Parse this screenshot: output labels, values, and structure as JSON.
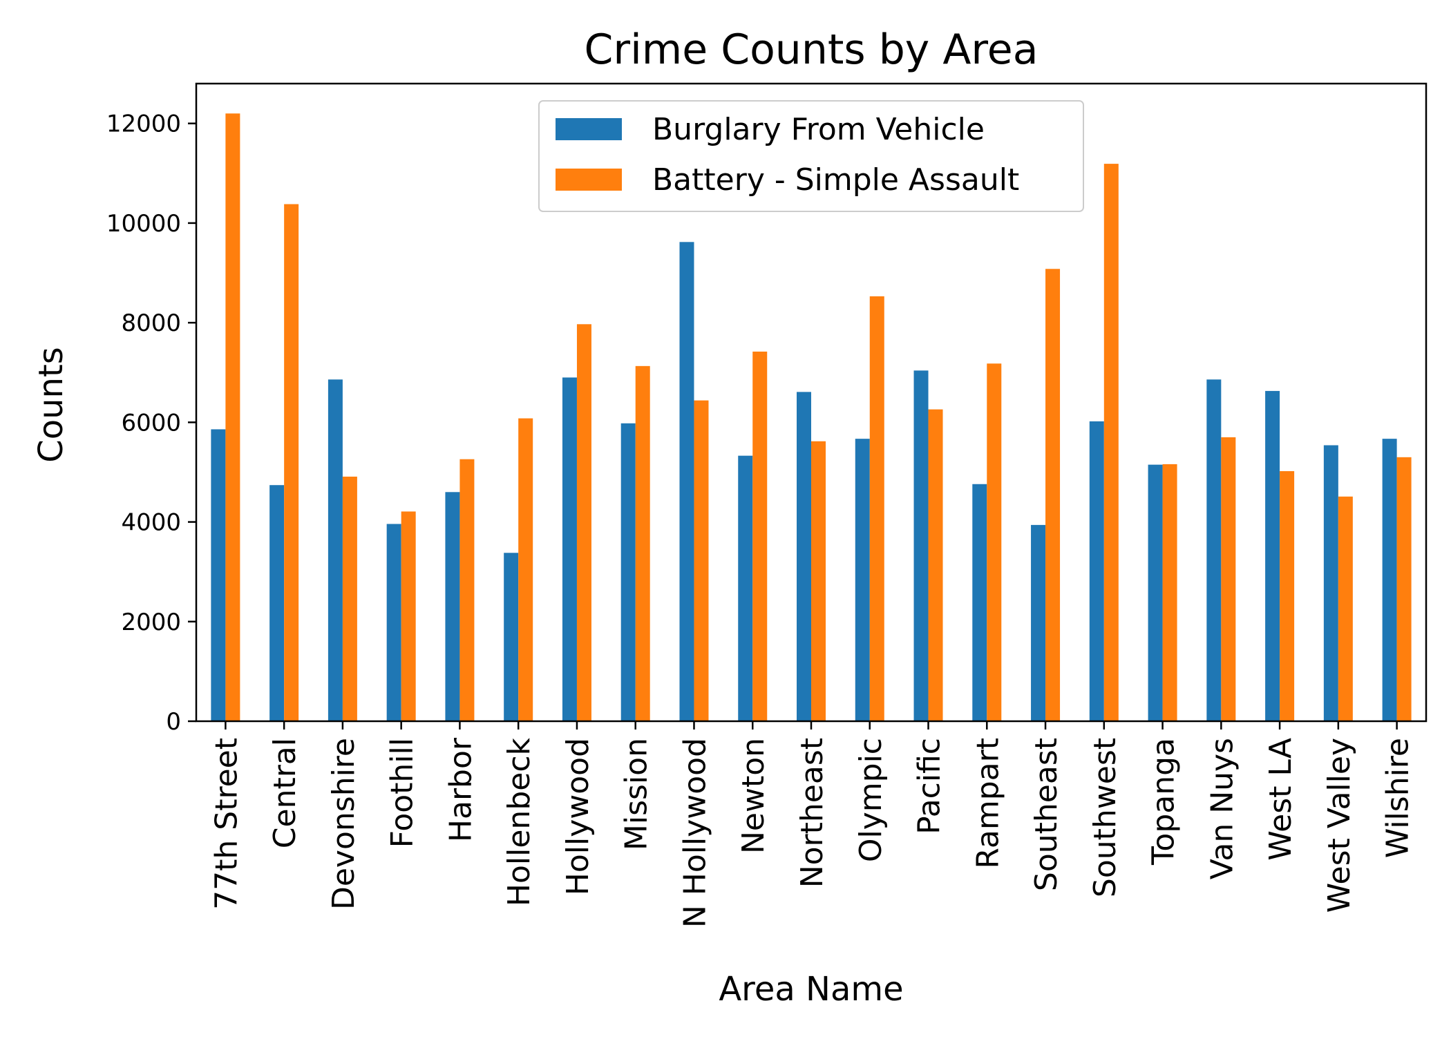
{
  "chart_data": {
    "type": "bar",
    "title": "Crime Counts by Area",
    "xlabel": "Area Name",
    "ylabel": "Counts",
    "ylim": [
      0,
      12800
    ],
    "yticks": [
      0,
      2000,
      4000,
      6000,
      8000,
      10000,
      12000
    ],
    "grid": false,
    "legend_position": "top-center",
    "categories": [
      "77th Street",
      "Central",
      "Devonshire",
      "Foothill",
      "Harbor",
      "Hollenbeck",
      "Hollywood",
      "Mission",
      "N Hollywood",
      "Newton",
      "Northeast",
      "Olympic",
      "Pacific",
      "Rampart",
      "Southeast",
      "Southwest",
      "Topanga",
      "Van Nuys",
      "West LA",
      "West Valley",
      "Wilshire"
    ],
    "series": [
      {
        "name": "Burglary From Vehicle",
        "color": "#1f77b4",
        "values": [
          5860,
          4740,
          6860,
          3960,
          4600,
          3380,
          6900,
          5980,
          9620,
          5330,
          6610,
          5670,
          7040,
          4760,
          3940,
          6020,
          5150,
          6860,
          6630,
          5540,
          5670
        ]
      },
      {
        "name": "Battery - Simple Assault",
        "color": "#ff7f0e",
        "values": [
          12200,
          10380,
          4910,
          4210,
          5260,
          6080,
          7970,
          7130,
          6440,
          7420,
          5620,
          8530,
          6260,
          7180,
          9080,
          11190,
          5160,
          5700,
          5020,
          4510,
          5300
        ]
      }
    ]
  }
}
